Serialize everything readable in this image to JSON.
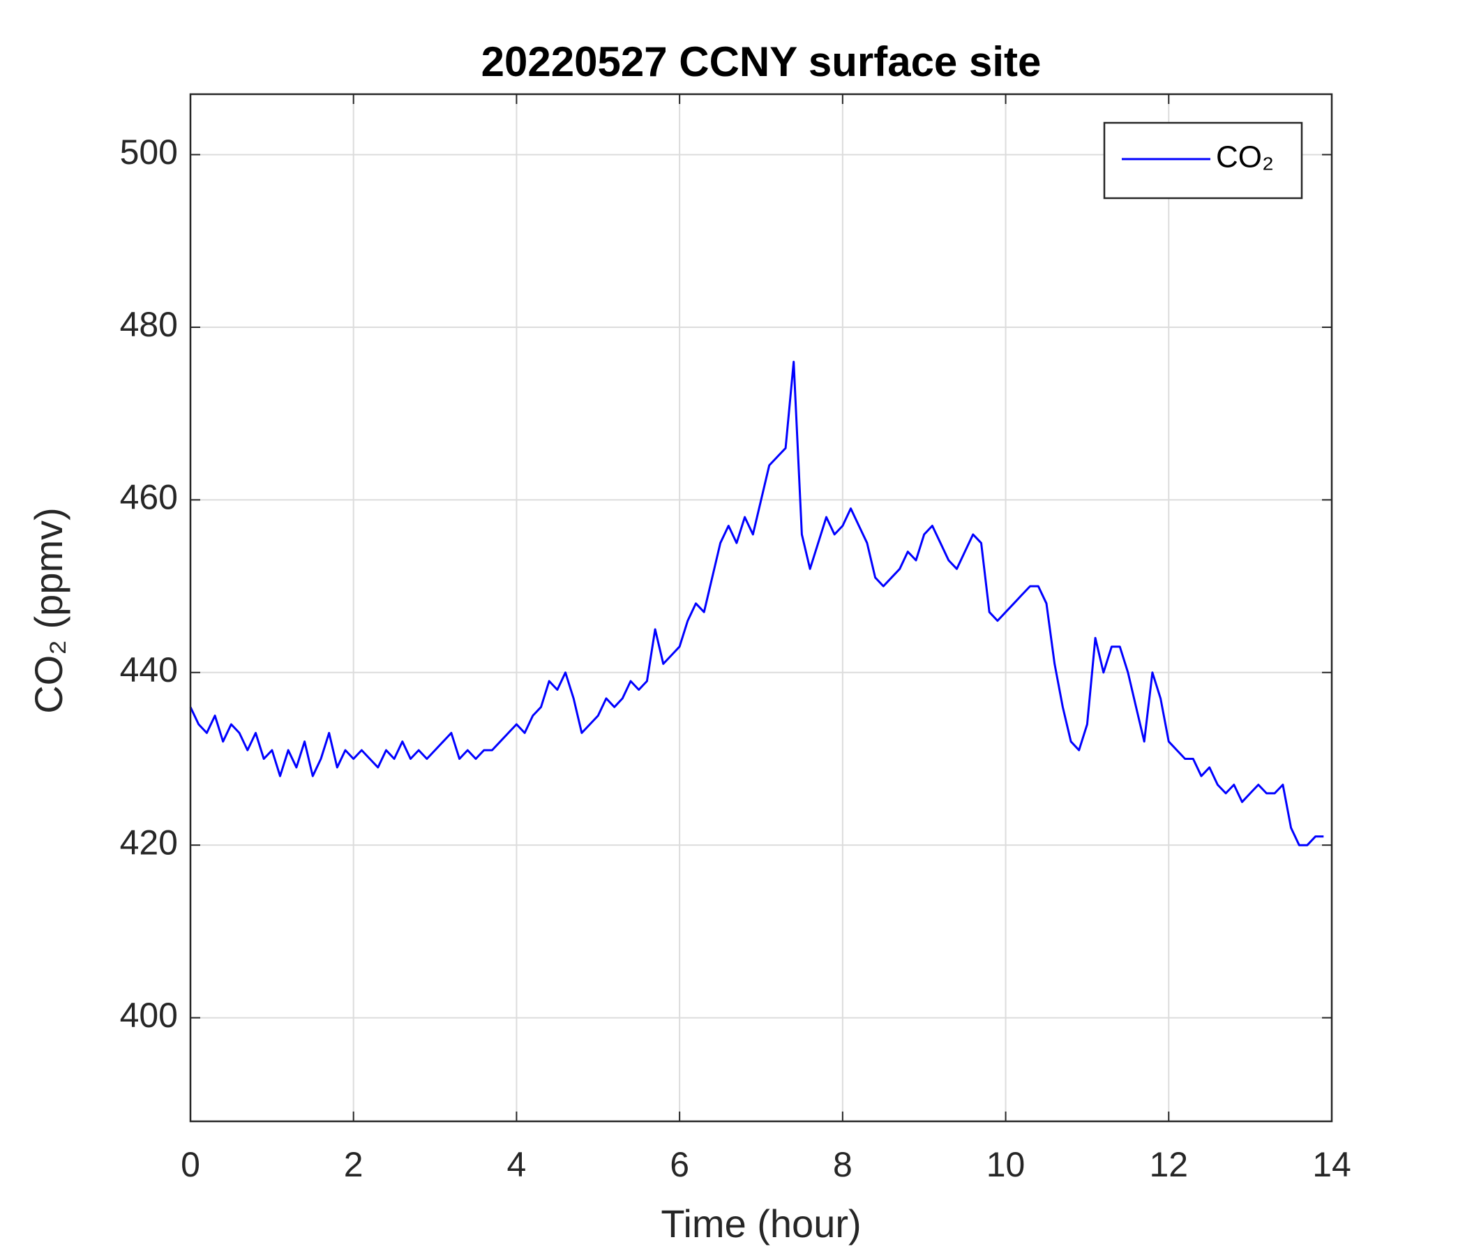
{
  "chart_data": {
    "type": "line",
    "title": "20220527 CCNY surface site",
    "xlabel": "Time (hour)",
    "ylabel": "CO₂ (ppmv)",
    "xlim": [
      0,
      14
    ],
    "xticks": [
      0,
      2,
      4,
      6,
      8,
      10,
      12,
      14
    ],
    "ylim": [
      388,
      507
    ],
    "yticks": [
      400,
      420,
      440,
      460,
      480,
      500
    ],
    "grid": true,
    "legend": "top-right",
    "x": [
      0,
      0.1,
      0.2,
      0.3,
      0.4,
      0.5,
      0.6,
      0.7,
      0.8,
      0.9,
      1,
      1.1,
      1.2,
      1.3,
      1.4,
      1.5,
      1.6,
      1.7,
      1.8,
      1.9,
      2,
      2.1,
      2.2,
      2.3,
      2.4,
      2.5,
      2.6,
      2.7,
      2.8,
      2.9,
      3,
      3.1,
      3.2,
      3.3,
      3.4,
      3.5,
      3.6,
      3.7,
      3.8,
      3.9,
      4,
      4.1,
      4.2,
      4.3,
      4.4,
      4.5,
      4.6,
      4.7,
      4.8,
      4.9,
      5,
      5.1,
      5.2,
      5.3,
      5.4,
      5.5,
      5.6,
      5.7,
      5.8,
      5.9,
      6,
      6.1,
      6.2,
      6.3,
      6.4,
      6.5,
      6.6,
      6.7,
      6.8,
      6.9,
      7,
      7.1,
      7.2,
      7.3,
      7.4,
      7.5,
      7.6,
      7.7,
      7.8,
      7.9,
      8,
      8.1,
      8.2,
      8.3,
      8.4,
      8.5,
      8.6,
      8.7,
      8.8,
      8.9,
      9,
      9.1,
      9.2,
      9.3,
      9.4,
      9.5,
      9.6,
      9.7,
      9.8,
      9.9,
      10,
      10.1,
      10.2,
      10.3,
      10.4,
      10.5,
      10.6,
      10.7,
      10.8,
      10.9,
      11,
      11.1,
      11.2,
      11.3,
      11.4,
      11.5,
      11.6,
      11.7,
      11.8,
      11.9,
      12,
      12.1,
      12.2,
      12.3,
      12.4,
      12.5,
      12.6,
      12.7,
      12.8,
      12.9,
      13,
      13.1,
      13.2,
      13.3,
      13.4,
      13.5,
      13.6,
      13.7,
      13.8,
      13.9
    ],
    "series": [
      {
        "name": "CO₂",
        "color": "#0000ff",
        "values": [
          436,
          434,
          433,
          435,
          432,
          434,
          433,
          431,
          433,
          430,
          431,
          428,
          431,
          429,
          432,
          428,
          430,
          433,
          429,
          431,
          430,
          431,
          430,
          429,
          431,
          430,
          432,
          430,
          431,
          430,
          431,
          432,
          433,
          430,
          431,
          430,
          431,
          431,
          432,
          433,
          434,
          433,
          435,
          436,
          439,
          438,
          440,
          437,
          433,
          434,
          435,
          437,
          436,
          437,
          439,
          438,
          439,
          445,
          441,
          442,
          443,
          446,
          448,
          447,
          451,
          455,
          457,
          455,
          458,
          456,
          460,
          464,
          465,
          466,
          476,
          456,
          452,
          455,
          458,
          456,
          457,
          459,
          457,
          455,
          451,
          450,
          451,
          452,
          454,
          453,
          456,
          457,
          455,
          453,
          452,
          454,
          456,
          455,
          447,
          446,
          447,
          448,
          449,
          450,
          450,
          448,
          441,
          436,
          432,
          431,
          434,
          444,
          440,
          443,
          443,
          440,
          436,
          432,
          440,
          437,
          432,
          431,
          430,
          430,
          428,
          429,
          427,
          426,
          427,
          425,
          426,
          427,
          426,
          426,
          427,
          422,
          420,
          420,
          421,
          421
        ]
      }
    ]
  }
}
